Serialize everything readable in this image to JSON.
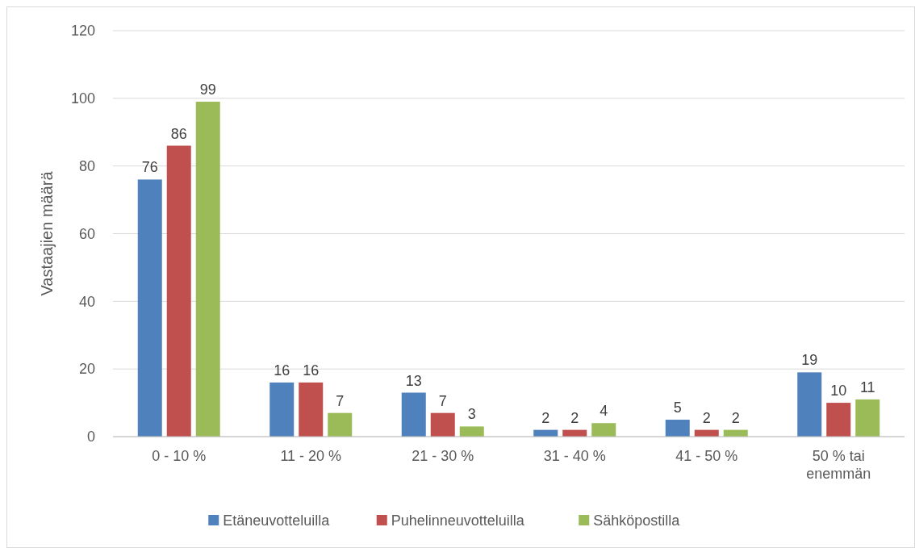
{
  "chart_data": {
    "type": "bar",
    "ylabel": "Vastaajien määrä",
    "categories": [
      "0 - 10 %",
      "11 - 20 %",
      "21 - 30 %",
      "31 - 40 %",
      "41 - 50 %",
      "50 % tai enemmän"
    ],
    "series": [
      {
        "name": "Etäneuvotteluilla",
        "color": "#4f81bd",
        "values": [
          76,
          16,
          13,
          2,
          5,
          19
        ]
      },
      {
        "name": "Puhelinneuvotteluilla",
        "color": "#c0504d",
        "values": [
          86,
          16,
          7,
          2,
          2,
          10
        ]
      },
      {
        "name": "Sähköpostilla",
        "color": "#9bbb59",
        "values": [
          99,
          7,
          3,
          4,
          2,
          11
        ]
      }
    ],
    "ylim": [
      0,
      120
    ],
    "yticks": [
      0,
      20,
      40,
      60,
      80,
      100,
      120
    ],
    "grid": "y",
    "legend": "bottom",
    "data_labels": true
  }
}
